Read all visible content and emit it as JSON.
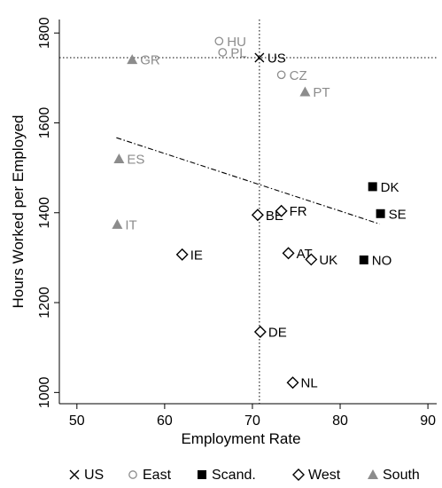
{
  "chart_data": {
    "type": "scatter",
    "xlabel": "Employment Rate",
    "ylabel": "Hours Worked per Employed",
    "xlim": [
      48,
      91
    ],
    "ylim": [
      975,
      1830
    ],
    "x_ticks": [
      50,
      60,
      70,
      80,
      90
    ],
    "y_ticks": [
      1000,
      1200,
      1400,
      1600,
      1800
    ],
    "grid": false,
    "legend_position": "bottom",
    "reference_lines": {
      "x": 70.8,
      "y": 1745
    },
    "fit_line": {
      "x": [
        54.5,
        84.5
      ],
      "y": [
        1567,
        1375
      ]
    },
    "groups": [
      {
        "name": "US",
        "marker": "x",
        "color": "#000000"
      },
      {
        "name": "East",
        "marker": "circle-open",
        "color": "#8c8c8c"
      },
      {
        "name": "Scand.",
        "marker": "square-filled",
        "color": "#000000"
      },
      {
        "name": "West",
        "marker": "diamond-open",
        "color": "#000000"
      },
      {
        "name": "South",
        "marker": "triangle-filled",
        "color": "#8c8c8c"
      }
    ],
    "points": [
      {
        "label": "US",
        "group": "US",
        "x": 70.8,
        "y": 1745
      },
      {
        "label": "HU",
        "group": "East",
        "x": 66.2,
        "y": 1782
      },
      {
        "label": "PL",
        "group": "East",
        "x": 66.6,
        "y": 1757
      },
      {
        "label": "CZ",
        "group": "East",
        "x": 73.3,
        "y": 1707
      },
      {
        "label": "GR",
        "group": "South",
        "x": 56.3,
        "y": 1741
      },
      {
        "label": "PT",
        "group": "South",
        "x": 76.0,
        "y": 1669
      },
      {
        "label": "ES",
        "group": "South",
        "x": 54.8,
        "y": 1520
      },
      {
        "label": "IT",
        "group": "South",
        "x": 54.6,
        "y": 1374
      },
      {
        "label": "DK",
        "group": "Scand.",
        "x": 83.7,
        "y": 1458
      },
      {
        "label": "SE",
        "group": "Scand.",
        "x": 84.6,
        "y": 1398
      },
      {
        "label": "NO",
        "group": "Scand.",
        "x": 82.7,
        "y": 1295
      },
      {
        "label": "BE",
        "group": "West",
        "x": 70.6,
        "y": 1395
      },
      {
        "label": "FR",
        "group": "West",
        "x": 73.3,
        "y": 1404
      },
      {
        "label": "IE",
        "group": "West",
        "x": 62.0,
        "y": 1307
      },
      {
        "label": "AT",
        "group": "West",
        "x": 74.1,
        "y": 1310
      },
      {
        "label": "UK",
        "group": "West",
        "x": 76.7,
        "y": 1296
      },
      {
        "label": "DE",
        "group": "West",
        "x": 70.9,
        "y": 1135
      },
      {
        "label": "NL",
        "group": "West",
        "x": 74.6,
        "y": 1022
      }
    ]
  }
}
